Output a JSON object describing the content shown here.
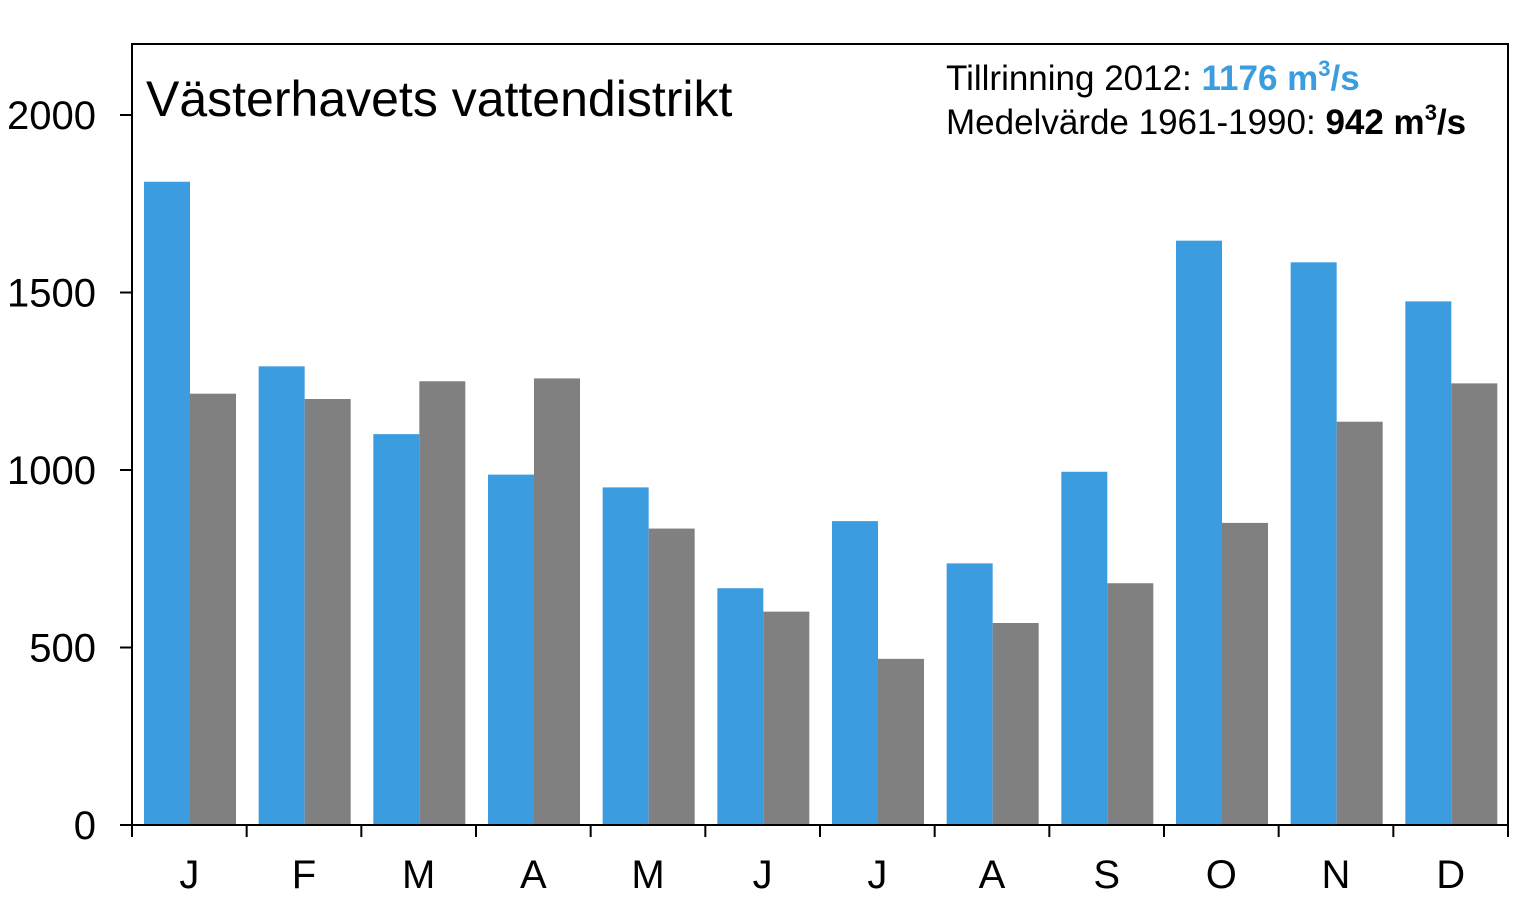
{
  "chart_data": {
    "type": "bar",
    "title": "Västerhavets vattendistrikt",
    "categories": [
      "J",
      "F",
      "M",
      "A",
      "M",
      "J",
      "J",
      "A",
      "S",
      "O",
      "N",
      "D"
    ],
    "series": [
      {
        "name": "Tillrinning 2012",
        "color": "#3b9ce0",
        "values": [
          1812,
          1292,
          1101,
          987,
          951,
          667,
          856,
          737,
          995,
          1646,
          1585,
          1475
        ]
      },
      {
        "name": "Medelvärde 1961-1990",
        "color": "#808080",
        "values": [
          1215,
          1200,
          1250,
          1258,
          835,
          601,
          468,
          569,
          681,
          851,
          1136,
          1244
        ]
      }
    ],
    "ylim": [
      0,
      2200
    ],
    "yticks": [
      "0",
      "500",
      "1000",
      "1500",
      "2000"
    ],
    "legend": [
      {
        "label": "Tillrinning 2012: ",
        "value": "1176 m",
        "sup": "3",
        "unit": "/s",
        "value_color": "#3b9ce0"
      },
      {
        "label": "Medelvärde 1961-1990: ",
        "value": "942 m",
        "sup": "3",
        "unit": "/s",
        "value_color": "#000000"
      }
    ],
    "legend_position": "top-right",
    "grid": false
  }
}
